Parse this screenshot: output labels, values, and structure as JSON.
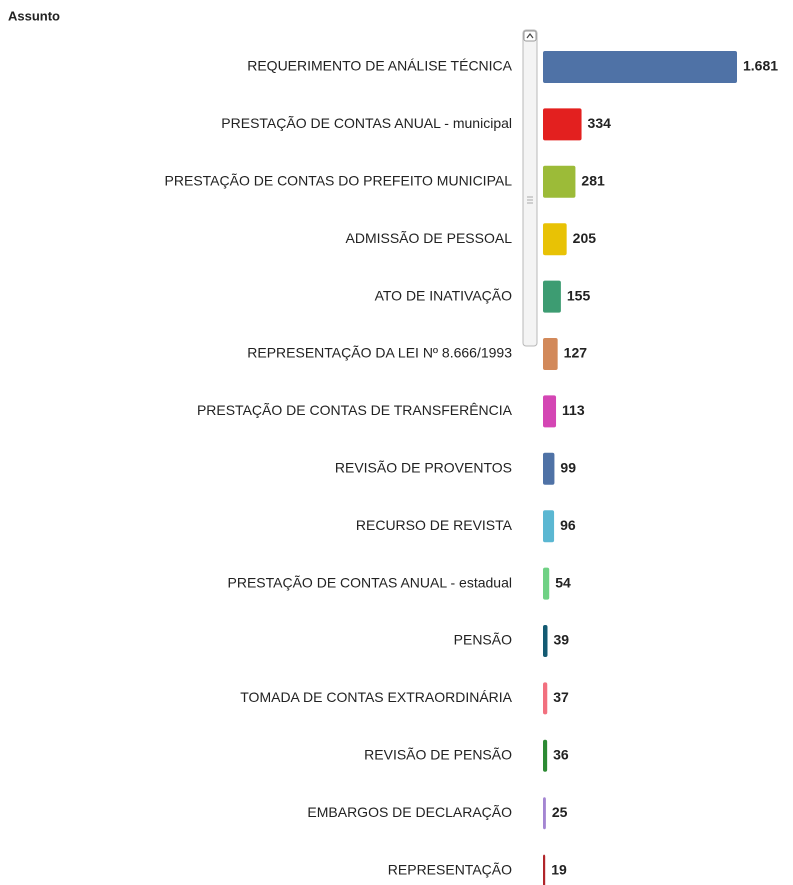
{
  "chart_data": {
    "type": "barh",
    "title": "Assunto",
    "categories": [
      "REQUERIMENTO DE ANÁLISE TÉCNICA",
      "PRESTAÇÃO DE CONTAS ANUAL - municipal",
      "PRESTAÇÃO DE CONTAS DO PREFEITO MUNICIPAL",
      "ADMISSÃO DE PESSOAL",
      "ATO DE INATIVAÇÃO",
      "REPRESENTAÇÃO DA LEI Nº 8.666/1993",
      "PRESTAÇÃO DE CONTAS DE TRANSFERÊNCIA",
      "REVISÃO DE PROVENTOS",
      "RECURSO DE REVISTA",
      "PRESTAÇÃO DE CONTAS ANUAL - estadual",
      "PENSÃO",
      "TOMADA DE CONTAS EXTRAORDINÁRIA",
      "REVISÃO DE PENSÃO",
      "EMBARGOS DE DECLARAÇÃO",
      "REPRESENTAÇÃO"
    ],
    "values": [
      1681,
      334,
      281,
      205,
      155,
      127,
      113,
      99,
      96,
      54,
      39,
      37,
      36,
      25,
      19
    ],
    "value_labels": [
      "1.681",
      "334",
      "281",
      "205",
      "155",
      "127",
      "113",
      "99",
      "96",
      "54",
      "39",
      "37",
      "36",
      "25",
      "19"
    ],
    "colors": [
      "#4f72a6",
      "#e3201f",
      "#9cbb38",
      "#e8c205",
      "#3d9c72",
      "#d2895a",
      "#d446b4",
      "#4f72a6",
      "#5bb7d2",
      "#6fd184",
      "#135a72",
      "#f2707f",
      "#2c8a33",
      "#a485d2",
      "#b1252a"
    ]
  }
}
